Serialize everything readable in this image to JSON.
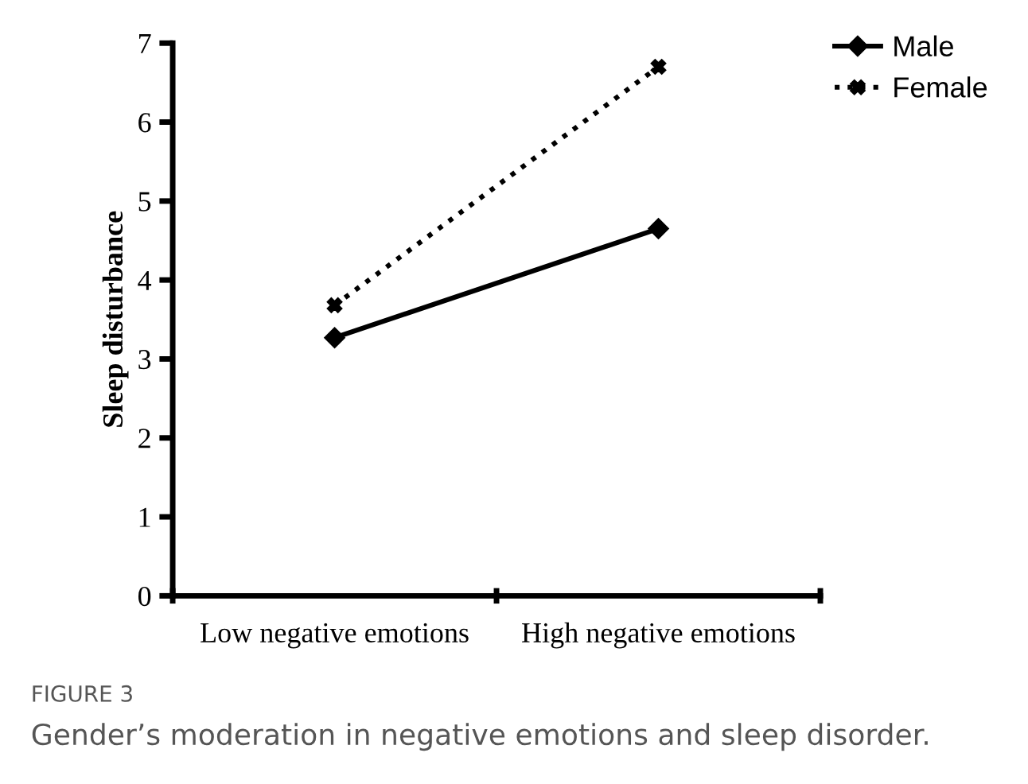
{
  "chart_data": {
    "type": "line",
    "ylabel": "Sleep disturbance",
    "categories": [
      "Low negative emotions",
      "High negative emotions"
    ],
    "series": [
      {
        "name": "Male",
        "color": "#000000",
        "values": [
          3.27,
          4.65
        ],
        "marker": "diamond",
        "line_style": "solid"
      },
      {
        "name": "Female",
        "color": "#000000",
        "values": [
          3.68,
          6.7
        ],
        "marker": "cross",
        "line_style": "dotted"
      }
    ],
    "ylim": [
      0,
      7
    ],
    "yticks": [
      0,
      1,
      2,
      3,
      4,
      5,
      6,
      7
    ],
    "grid": false,
    "legend": "top right",
    "annotations": [
      "FIGURE 3",
      "Gender’s moderation in negative emotions and sleep disorder."
    ]
  }
}
